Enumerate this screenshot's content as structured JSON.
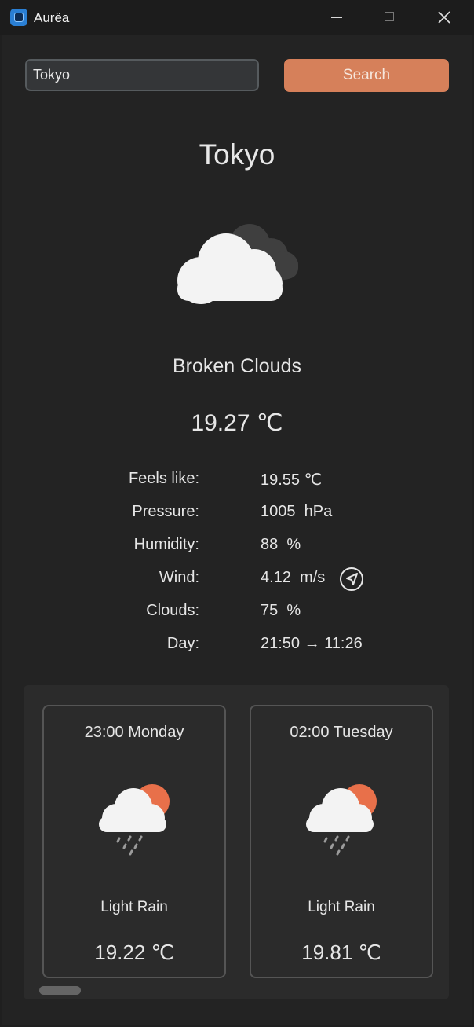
{
  "window": {
    "title": "Aurëa"
  },
  "search": {
    "value": "Tokyo",
    "button_label": "Search"
  },
  "current": {
    "city": "Tokyo",
    "icon": "broken-clouds-icon",
    "description": "Broken Clouds",
    "temperature": "19.27 ℃",
    "details": [
      {
        "label": "Feels like:",
        "value": "19.55 ℃"
      },
      {
        "label": "Pressure:",
        "value": "1005  hPa"
      },
      {
        "label": "Humidity:",
        "value": "88  %"
      },
      {
        "label": "Wind:",
        "value": "4.12  m/s"
      },
      {
        "label": "Clouds:",
        "value": "75  %"
      },
      {
        "label": "Day:",
        "value": "21:50 → 11:26"
      }
    ]
  },
  "forecast": [
    {
      "time": "23:00 Monday",
      "icon": "light-rain-sun-icon",
      "description": "Light Rain",
      "temperature": "19.22 ℃"
    },
    {
      "time": "02:00 Tuesday",
      "icon": "light-rain-sun-icon",
      "description": "Light Rain",
      "temperature": "19.81 ℃"
    }
  ],
  "colors": {
    "accent": "#d6805a",
    "background": "#232323",
    "panel": "#2b2b2b"
  }
}
